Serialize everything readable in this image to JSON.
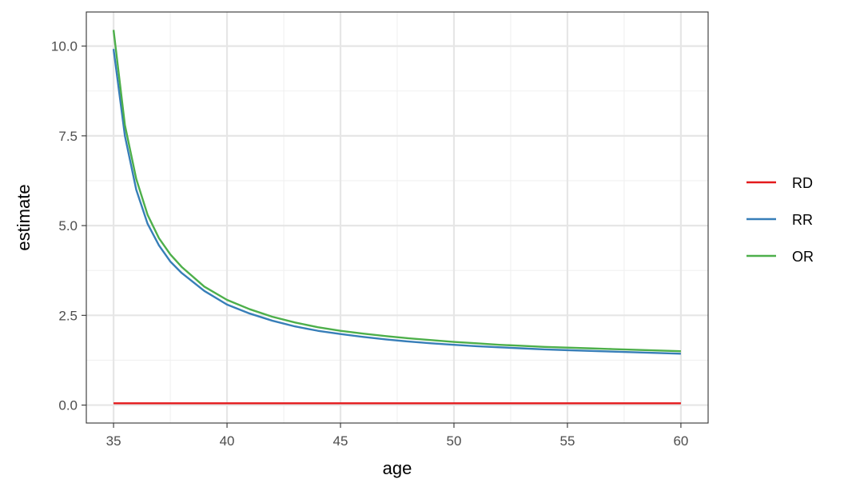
{
  "chart_data": {
    "type": "line",
    "xlabel": "age",
    "ylabel": "estimate",
    "xlim": [
      33.8,
      61.2
    ],
    "ylim": [
      -0.5,
      10.95
    ],
    "x_ticks": [
      35,
      40,
      45,
      50,
      55,
      60
    ],
    "x_minor_ticks": [
      37.5,
      42.5,
      47.5,
      52.5,
      57.5
    ],
    "y_ticks": [
      0.0,
      2.5,
      5.0,
      7.5,
      10.0
    ],
    "y_tick_labels": [
      "0.0",
      "2.5",
      "5.0",
      "7.5",
      "10.0"
    ],
    "y_minor_ticks": [
      1.25,
      3.75,
      6.25,
      8.75
    ],
    "grid": true,
    "legend_position": "right",
    "x": [
      35,
      35.5,
      36,
      36.5,
      37,
      37.5,
      38,
      39,
      40,
      41,
      42,
      43,
      44,
      45,
      46,
      47,
      48,
      49,
      50,
      51,
      52,
      53,
      54,
      55,
      56,
      57,
      58,
      59,
      60
    ],
    "series": [
      {
        "name": "RD",
        "color": "#e41a1c",
        "values": [
          0.05,
          0.05,
          0.05,
          0.05,
          0.05,
          0.05,
          0.05,
          0.05,
          0.05,
          0.05,
          0.05,
          0.05,
          0.05,
          0.05,
          0.05,
          0.05,
          0.05,
          0.05,
          0.05,
          0.05,
          0.05,
          0.05,
          0.05,
          0.05,
          0.05,
          0.05,
          0.05,
          0.05,
          0.05
        ]
      },
      {
        "name": "RR",
        "color": "#377eb8",
        "values": [
          9.92,
          7.5,
          6.0,
          5.05,
          4.45,
          4.0,
          3.68,
          3.18,
          2.8,
          2.55,
          2.35,
          2.19,
          2.07,
          1.98,
          1.9,
          1.83,
          1.77,
          1.72,
          1.68,
          1.64,
          1.61,
          1.58,
          1.55,
          1.53,
          1.51,
          1.49,
          1.47,
          1.45,
          1.43
        ]
      },
      {
        "name": "OR",
        "color": "#4daf4a",
        "values": [
          10.45,
          7.8,
          6.3,
          5.3,
          4.65,
          4.2,
          3.85,
          3.3,
          2.93,
          2.67,
          2.46,
          2.3,
          2.17,
          2.07,
          1.99,
          1.92,
          1.86,
          1.81,
          1.76,
          1.72,
          1.68,
          1.65,
          1.62,
          1.6,
          1.58,
          1.56,
          1.54,
          1.52,
          1.5
        ]
      }
    ]
  }
}
